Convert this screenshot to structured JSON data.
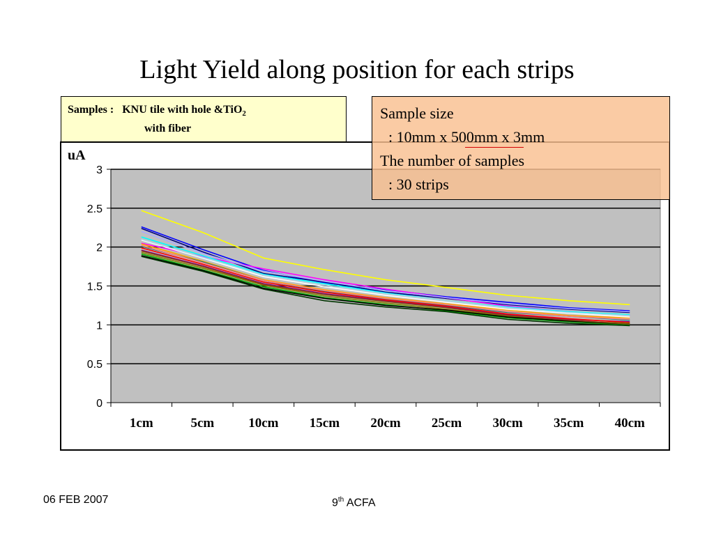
{
  "slide": {
    "title": "Light Yield along position for each strips",
    "footer_date": "06 FEB 2007",
    "footer_conf_num": "9",
    "footer_conf_sup": "th",
    "footer_conf_text": " ACFA"
  },
  "samples_box": {
    "prefix": "Samples :",
    "text": "KNU tile with hole &TiO",
    "subscript": "2",
    "line2": "with fiber"
  },
  "size_box": {
    "line1": "Sample size",
    "line2": ": 10mm x 500mm x 3mm",
    "line3": "The number of  samples",
    "line4": ": 30 strips"
  },
  "colors": {
    "plot_background": "#c0c0c0",
    "gridline": "#000000",
    "samples_box_bg": "#ffffcc",
    "size_box_bg": "#f9c090",
    "underline": "#d40000"
  },
  "chart_data": {
    "type": "line",
    "ylabel": "uA",
    "ylim": [
      0,
      3
    ],
    "yticks": [
      "0",
      "0.5",
      "1",
      "1.5",
      "2",
      "2.5",
      "3"
    ],
    "categories": [
      "1cm",
      "5cm",
      "10cm",
      "15cm",
      "20cm",
      "25cm",
      "30cm",
      "35cm",
      "40cm"
    ],
    "grid": true,
    "legend": "none",
    "series": [
      {
        "color": "#ffff00",
        "values": [
          2.47,
          2.19,
          1.86,
          1.71,
          1.58,
          1.48,
          1.38,
          1.31,
          1.26
        ]
      },
      {
        "color": "#0000ff",
        "values": [
          2.26,
          1.97,
          1.7,
          1.54,
          1.45,
          1.36,
          1.29,
          1.22,
          1.18
        ]
      },
      {
        "color": "#000080",
        "values": [
          2.24,
          1.94,
          1.66,
          1.55,
          1.42,
          1.34,
          1.26,
          1.2,
          1.16
        ]
      },
      {
        "color": "#ff00ff",
        "values": [
          2.05,
          1.88,
          1.72,
          1.58,
          1.46,
          1.35,
          1.24,
          1.17,
          1.12
        ]
      },
      {
        "color": "#aaaaff",
        "values": [
          2.2,
          1.92,
          1.69,
          1.56,
          1.44,
          1.35,
          1.27,
          1.21,
          1.17
        ]
      },
      {
        "color": "#00ffff",
        "values": [
          2.13,
          1.89,
          1.65,
          1.53,
          1.41,
          1.31,
          1.23,
          1.17,
          1.13
        ]
      },
      {
        "color": "#ffa500",
        "values": [
          2.04,
          1.82,
          1.58,
          1.45,
          1.35,
          1.27,
          1.19,
          1.12,
          1.09
        ]
      },
      {
        "color": "#008080",
        "values": [
          2.01,
          1.81,
          1.57,
          1.43,
          1.33,
          1.25,
          1.16,
          1.11,
          1.06
        ]
      },
      {
        "color": "#ffffff",
        "values": [
          2.09,
          1.86,
          1.62,
          1.49,
          1.38,
          1.29,
          1.2,
          1.15,
          1.1
        ]
      },
      {
        "color": "#800080",
        "values": [
          1.96,
          1.76,
          1.53,
          1.4,
          1.31,
          1.23,
          1.13,
          1.07,
          1.04
        ]
      },
      {
        "color": "#ff0000",
        "values": [
          1.99,
          1.78,
          1.55,
          1.42,
          1.32,
          1.24,
          1.14,
          1.08,
          1.03
        ]
      },
      {
        "color": "#808000",
        "values": [
          1.93,
          1.73,
          1.51,
          1.37,
          1.28,
          1.2,
          1.11,
          1.05,
          1.02
        ]
      },
      {
        "color": "#00aa00",
        "values": [
          1.91,
          1.71,
          1.49,
          1.35,
          1.26,
          1.18,
          1.09,
          1.04,
          1.0
        ]
      },
      {
        "color": "#000000",
        "values": [
          1.89,
          1.7,
          1.47,
          1.34,
          1.25,
          1.19,
          1.1,
          1.05,
          1.01
        ]
      },
      {
        "color": "#003300",
        "values": [
          1.88,
          1.69,
          1.46,
          1.31,
          1.23,
          1.17,
          1.07,
          1.02,
          0.99
        ]
      },
      {
        "color": "#8b4513",
        "values": [
          1.95,
          1.75,
          1.52,
          1.39,
          1.3,
          1.22,
          1.12,
          1.06,
          1.01
        ]
      },
      {
        "color": "#add8e6",
        "values": [
          2.1,
          1.87,
          1.64,
          1.51,
          1.4,
          1.31,
          1.22,
          1.16,
          1.12
        ]
      },
      {
        "color": "#ff8080",
        "values": [
          2.02,
          1.8,
          1.57,
          1.44,
          1.34,
          1.26,
          1.17,
          1.11,
          1.07
        ]
      }
    ]
  }
}
